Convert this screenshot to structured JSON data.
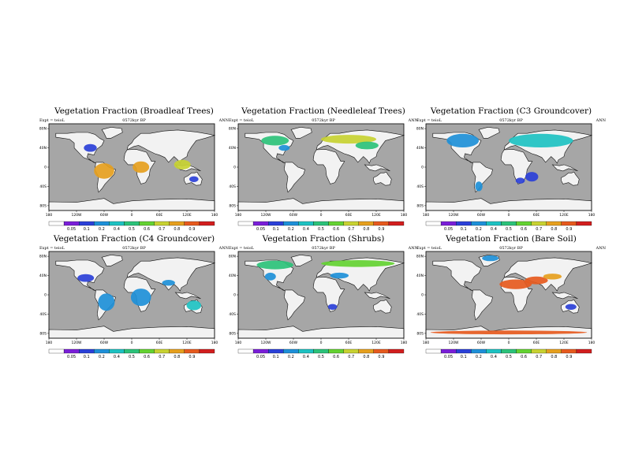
{
  "colorbar": {
    "colors": [
      "#ffffff",
      "#7a1fd8",
      "#2b40d8",
      "#1e90d8",
      "#1ec2c2",
      "#2cc27a",
      "#64d232",
      "#c8d232",
      "#e6a01e",
      "#e65a1e",
      "#d21e1e"
    ],
    "labels": [
      "0.05",
      "0.1",
      "0.2",
      "0.4",
      "0.5",
      "0.6",
      "0.7",
      "0.8",
      "0.9"
    ]
  },
  "axes": {
    "lon_ticks": [
      "180",
      "120W",
      "60W",
      "0",
      "60E",
      "120E",
      "180"
    ],
    "lat_ticks": [
      "80N",
      "40N",
      "0",
      "40S",
      "80S"
    ]
  },
  "panels": [
    {
      "title": "Vegetation Fraction (Broadleaf Trees)",
      "expt": "Expt = teioL",
      "period": "0572kyr BP",
      "ann": "ANN",
      "regions": [
        {
          "lon": -60,
          "lat": -8,
          "rx": 22,
          "ry": 16,
          "v": 0.8
        },
        {
          "lon": 20,
          "lat": 0,
          "rx": 18,
          "ry": 12,
          "v": 0.8
        },
        {
          "lon": 110,
          "lat": 5,
          "rx": 18,
          "ry": 10,
          "v": 0.7
        },
        {
          "lon": -90,
          "lat": 40,
          "rx": 14,
          "ry": 8,
          "v": 0.1
        },
        {
          "lon": 135,
          "lat": -25,
          "rx": 10,
          "ry": 6,
          "v": 0.1
        }
      ]
    },
    {
      "title": "Vegetation Fraction (Needleleaf Trees)",
      "expt": "Expt = teioL",
      "period": "0572kyr BP",
      "ann": "ANN",
      "regions": [
        {
          "lon": -100,
          "lat": 55,
          "rx": 30,
          "ry": 10,
          "v": 0.5
        },
        {
          "lon": 60,
          "lat": 58,
          "rx": 60,
          "ry": 9,
          "v": 0.7
        },
        {
          "lon": 100,
          "lat": 45,
          "rx": 25,
          "ry": 8,
          "v": 0.5
        },
        {
          "lon": -80,
          "lat": 40,
          "rx": 12,
          "ry": 6,
          "v": 0.2
        }
      ]
    },
    {
      "title": "Vegetation Fraction (C3 Groundcover)",
      "expt": "Expt = teioL",
      "period": "0572kyr BP",
      "ann": "ANN",
      "regions": [
        {
          "lon": -100,
          "lat": 55,
          "rx": 35,
          "ry": 14,
          "v": 0.3
        },
        {
          "lon": 70,
          "lat": 55,
          "rx": 70,
          "ry": 14,
          "v": 0.4
        },
        {
          "lon": 50,
          "lat": -20,
          "rx": 14,
          "ry": 10,
          "v": 0.1
        },
        {
          "lon": -65,
          "lat": -40,
          "rx": 8,
          "ry": 10,
          "v": 0.2
        },
        {
          "lon": 25,
          "lat": -28,
          "rx": 10,
          "ry": 6,
          "v": 0.1
        }
      ]
    },
    {
      "title": "Vegetation Fraction (C4 Groundcover)",
      "expt": "Expt = teioL",
      "period": "0572kyr BP",
      "ann": "ANN",
      "regions": [
        {
          "lon": -55,
          "lat": -15,
          "rx": 18,
          "ry": 18,
          "v": 0.2
        },
        {
          "lon": 20,
          "lat": -5,
          "rx": 22,
          "ry": 18,
          "v": 0.3
        },
        {
          "lon": 135,
          "lat": -22,
          "rx": 16,
          "ry": 10,
          "v": 0.4
        },
        {
          "lon": -100,
          "lat": 35,
          "rx": 18,
          "ry": 8,
          "v": 0.1
        },
        {
          "lon": 80,
          "lat": 25,
          "rx": 14,
          "ry": 6,
          "v": 0.2
        }
      ]
    },
    {
      "title": "Vegetation Fraction (Shrubs)",
      "expt": "Expt = teioL",
      "period": "0572kyr BP",
      "ann": "ANN",
      "regions": [
        {
          "lon": -100,
          "lat": 62,
          "rx": 40,
          "ry": 9,
          "v": 0.5
        },
        {
          "lon": 80,
          "lat": 65,
          "rx": 80,
          "ry": 7,
          "v": 0.6
        },
        {
          "lon": -110,
          "lat": 38,
          "rx": 12,
          "ry": 8,
          "v": 0.3
        },
        {
          "lon": 40,
          "lat": 40,
          "rx": 20,
          "ry": 6,
          "v": 0.3
        },
        {
          "lon": 25,
          "lat": -25,
          "rx": 10,
          "ry": 6,
          "v": 0.1
        }
      ]
    },
    {
      "title": "Vegetation Fraction (Bare Soil)",
      "expt": "Expt = teioL",
      "period": "0572kyr BP",
      "ann": "ANN",
      "regions": [
        {
          "lon": 15,
          "lat": 22,
          "rx": 35,
          "ry": 10,
          "v": 0.9
        },
        {
          "lon": 60,
          "lat": 30,
          "rx": 25,
          "ry": 8,
          "v": 0.9
        },
        {
          "lon": 95,
          "lat": 38,
          "rx": 20,
          "ry": 6,
          "v": 0.8
        },
        {
          "lon": -40,
          "lat": 76,
          "rx": 18,
          "ry": 6,
          "v": 0.2
        },
        {
          "lon": 0,
          "lat": -78,
          "rx": 170,
          "ry": 4,
          "v": 0.9
        },
        {
          "lon": 135,
          "lat": -25,
          "rx": 12,
          "ry": 6,
          "v": 0.1
        }
      ]
    }
  ]
}
